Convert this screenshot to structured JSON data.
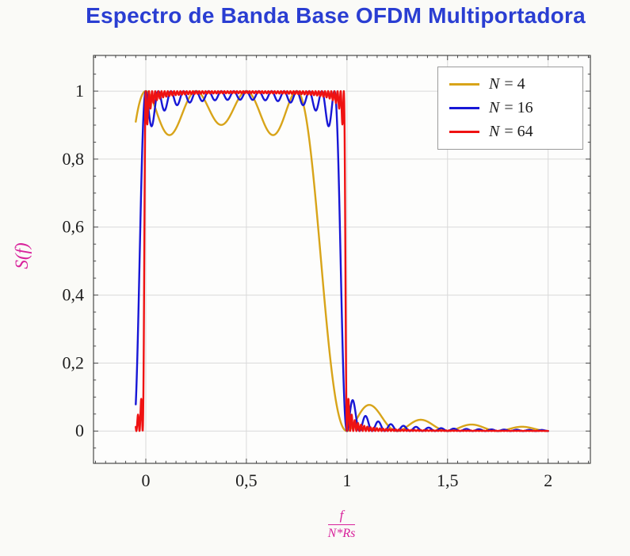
{
  "page": {
    "background": "#fafaf7"
  },
  "colors": {
    "title": "#2a3ed2",
    "axis_label": "#d8219b",
    "grid": "#d9d9d9",
    "frame": "#3a3a3a",
    "tick": "#3a3a3a",
    "tick_label": "#1c1c1c",
    "plot_background": "#fdfdfc",
    "legend_border": "#9b9b9b",
    "legend_background": "#ffffff",
    "legend_label": "#1c1c1c"
  },
  "chart_data": {
    "type": "line",
    "title": "Espectro de Banda Base OFDM Multiportadora",
    "ylabel": "S(f)",
    "xlabel_numerator": "f",
    "xlabel_denominator": "N*Rs",
    "x_ticks": [
      0,
      0.5,
      1,
      1.5,
      2
    ],
    "x_tick_labels": [
      "0",
      "0,5",
      "1",
      "1,5",
      "2"
    ],
    "y_ticks": [
      0,
      0.2,
      0.4,
      0.6,
      0.8,
      1
    ],
    "y_tick_labels": [
      "0",
      "0,2",
      "0,4",
      "0,6",
      "0,8",
      "1"
    ],
    "xlim": [
      -0.26,
      2.21
    ],
    "ylim": [
      -0.095,
      1.105
    ],
    "x_minor_step": 0.05,
    "y_minor_step": 0.05,
    "grid": "major",
    "legend_position": "top-right",
    "x_data_range": [
      -0.05,
      2
    ],
    "samples": 2000,
    "model": "S(x) = sum_{k=0..N-1} sinc^2(N*x - k), with x = f/(N*Rs); flat passband with ripple over 0<x<1, steep rolloff near x=1 (steeper for larger N), decaying sidelobes for x>1",
    "series": [
      {
        "name": "N = 4",
        "N": 4,
        "color": "#d8a419"
      },
      {
        "name": "N = 16",
        "N": 16,
        "color": "#1717d6"
      },
      {
        "name": "N = 64",
        "N": 64,
        "color": "#ef1212"
      }
    ]
  }
}
